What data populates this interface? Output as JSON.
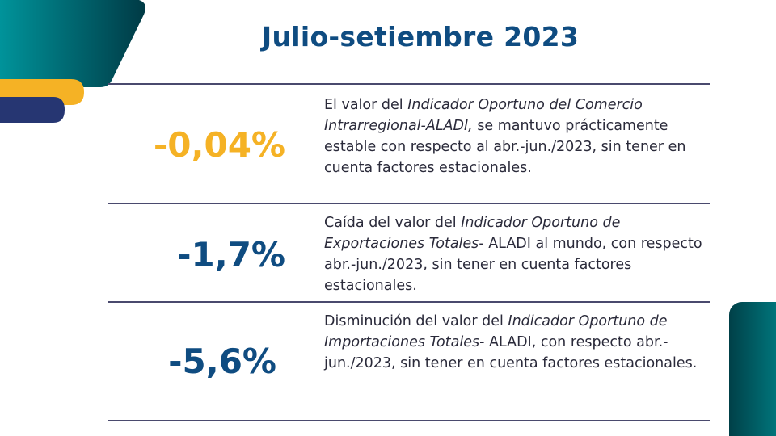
{
  "title": "Julio-setiembre 2023",
  "colors": {
    "title": "#0f4c81",
    "yellow": "#f5b225",
    "navy": "#0f4c81",
    "teal": "#008c95"
  },
  "items": [
    {
      "value": "-0,04%",
      "color": "#f5b225",
      "segments": [
        {
          "t": "El valor del ",
          "i": false
        },
        {
          "t": "Indicador Oportuno del Comercio Intrarregional-ALADI,",
          "i": true
        },
        {
          "t": " se mantuvo prácticamente estable con respecto al abr.-jun./2023, sin tener en cuenta factores estacionales.",
          "i": false
        }
      ]
    },
    {
      "value": "-1,7%",
      "color": "#0f4c81",
      "segments": [
        {
          "t": "Caída del valor del ",
          "i": false
        },
        {
          "t": "Indicador Oportuno de Exportaciones Totales",
          "i": true
        },
        {
          "t": "- ALADI al mundo, con respecto abr.-jun./2023, sin tener en cuenta factores estacionales.",
          "i": false
        }
      ]
    },
    {
      "value": "-5,6%",
      "color": "#0f4c81",
      "segments": [
        {
          "t": "Disminución  del valor del  ",
          "i": false
        },
        {
          "t": "Indicador Oportuno de  Importaciones Totales",
          "i": true
        },
        {
          "t": "- ALADI, con respecto abr.-jun./2023, sin tener en cuenta factores estacionales.",
          "i": false
        }
      ]
    }
  ]
}
